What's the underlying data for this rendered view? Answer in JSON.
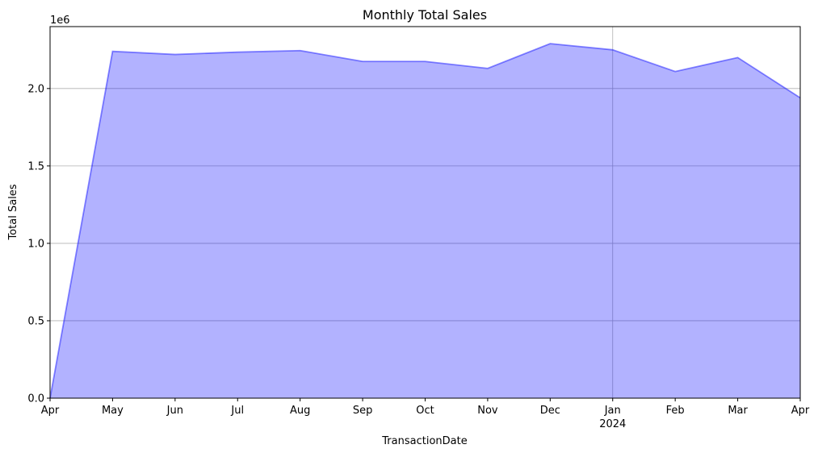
{
  "chart_data": {
    "type": "area",
    "title": "Monthly Total Sales",
    "xlabel": "TransactionDate",
    "ylabel": "Total Sales",
    "y_offset_label": "1e6",
    "ylim": [
      0,
      2400000
    ],
    "yticks": [
      0,
      500000,
      1000000,
      1500000,
      2000000
    ],
    "ytick_labels": [
      "0.0",
      "0.5",
      "1.0",
      "1.5",
      "2.0"
    ],
    "xticks": [
      {
        "label": "Apr",
        "sublabel": ""
      },
      {
        "label": "May",
        "sublabel": ""
      },
      {
        "label": "Jun",
        "sublabel": ""
      },
      {
        "label": "Jul",
        "sublabel": ""
      },
      {
        "label": "Aug",
        "sublabel": ""
      },
      {
        "label": "Sep",
        "sublabel": ""
      },
      {
        "label": "Oct",
        "sublabel": ""
      },
      {
        "label": "Nov",
        "sublabel": ""
      },
      {
        "label": "Dec",
        "sublabel": ""
      },
      {
        "label": "Jan",
        "sublabel": "2024"
      },
      {
        "label": "Feb",
        "sublabel": ""
      },
      {
        "label": "Mar",
        "sublabel": ""
      },
      {
        "label": "Apr",
        "sublabel": ""
      }
    ],
    "grid": true,
    "series": [
      {
        "color": "#0000ff",
        "values": [
          0,
          2240000,
          2220000,
          2235000,
          2245000,
          2175000,
          2175000,
          2130000,
          2290000,
          2250000,
          2110000,
          2200000,
          1940000
        ]
      }
    ]
  }
}
